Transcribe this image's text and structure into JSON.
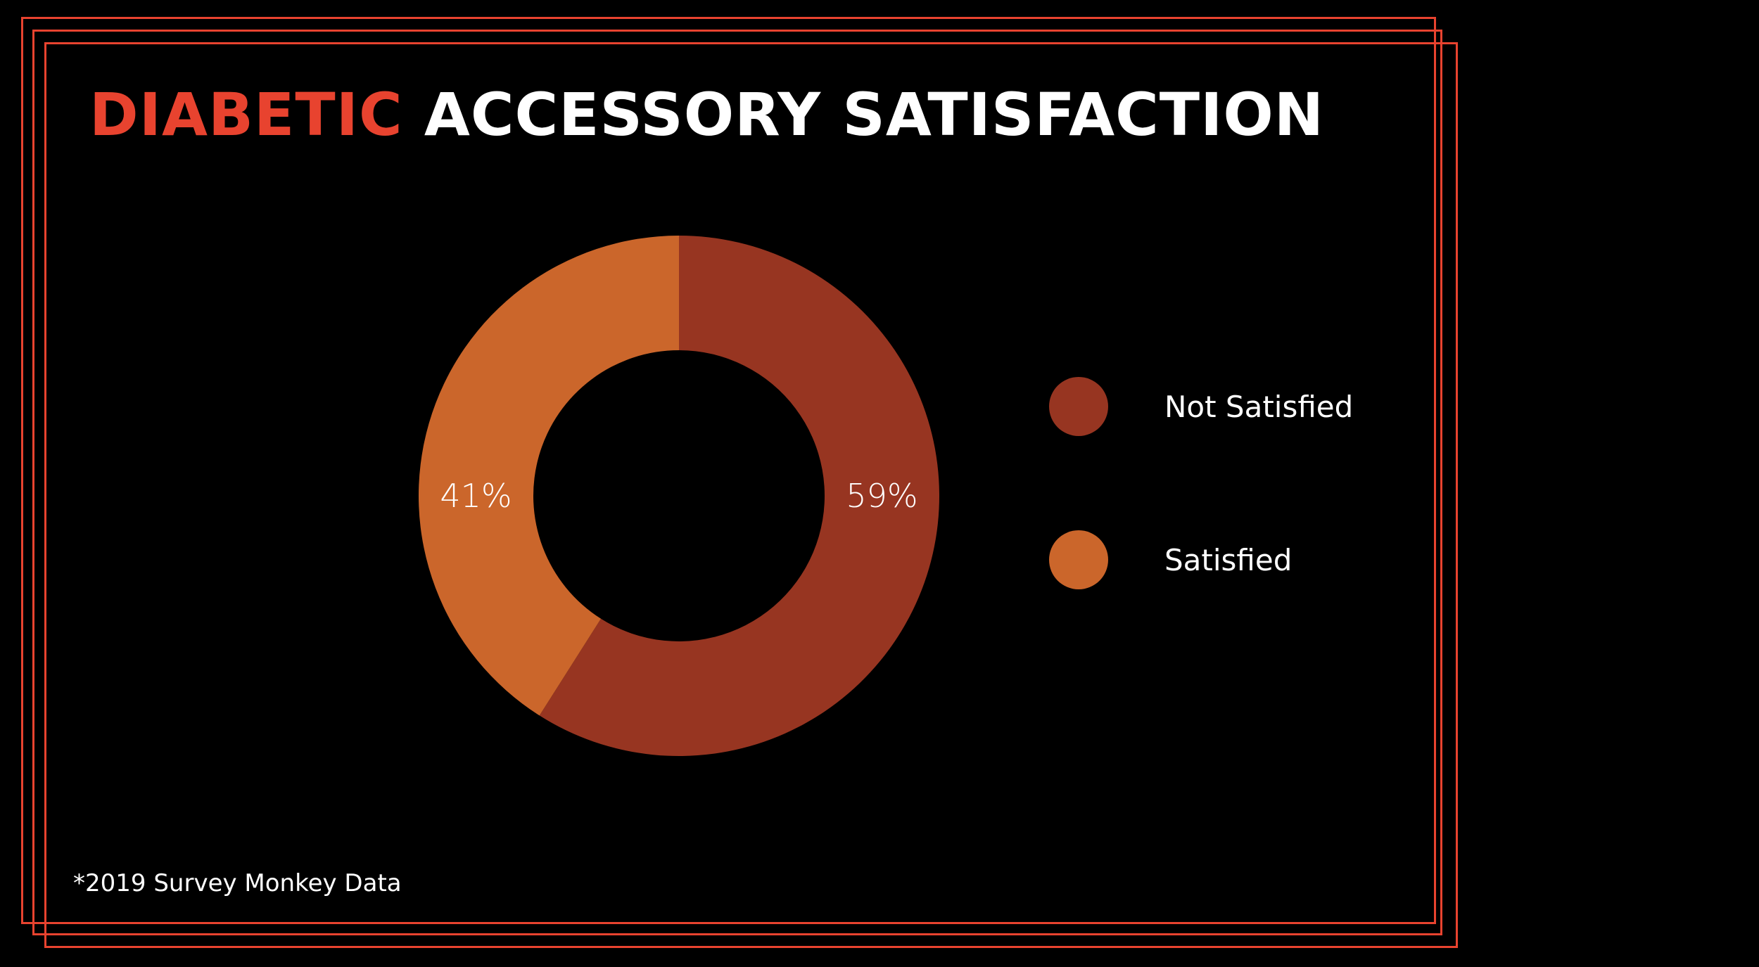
{
  "title": {
    "accent": "DIABETIC",
    "main": "ACCESSORY SATISFACTION"
  },
  "footnote": "*2019 Survey Monkey Data",
  "colors": {
    "background": "#000000",
    "frame": "#e8432f",
    "title_accent": "#e8432f",
    "title_main": "#ffffff",
    "not_satisfied": "#973521",
    "satisfied": "#cb662b"
  },
  "legend": [
    {
      "label": "Not Satisfied",
      "color": "#973521"
    },
    {
      "label": "Satisfied",
      "color": "#cb662b"
    }
  ],
  "chart_data": {
    "type": "pie",
    "style": "donut",
    "title": "DIABETIC ACCESSORY SATISFACTION",
    "categories": [
      "Not Satisfied",
      "Satisfied"
    ],
    "values": [
      59,
      41
    ],
    "unit": "%",
    "data_labels": [
      "59%",
      "41%"
    ],
    "colors": [
      "#973521",
      "#cb662b"
    ],
    "legend_position": "right",
    "start_angle": "top",
    "direction": "clockwise"
  }
}
